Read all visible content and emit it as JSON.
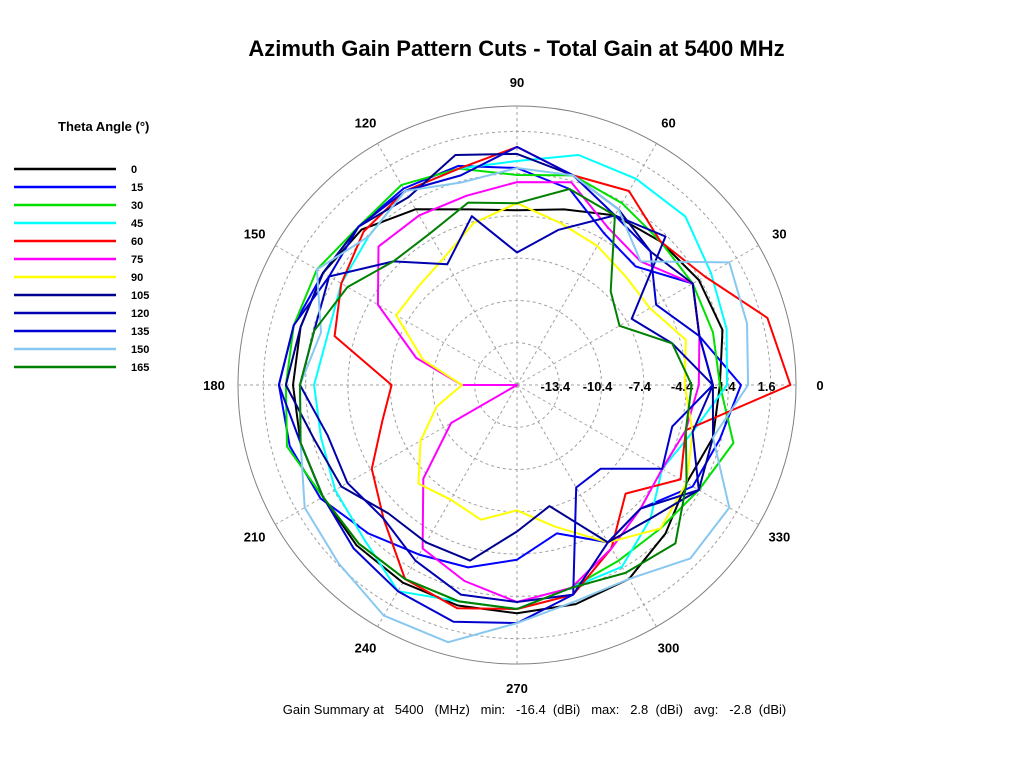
{
  "chart_data": {
    "type": "polar-line",
    "title": "Azimuth Gain Pattern Cuts - Total Gain at 5400 MHz",
    "legend_title": "Theta Angle (°)",
    "angle_labels": [
      "0",
      "30",
      "60",
      "90",
      "120",
      "150",
      "180",
      "210",
      "240",
      "270",
      "300",
      "330"
    ],
    "radial_ticks": [
      "-13.4",
      "-10.4",
      "-7.4",
      "-4.4",
      "-1.4",
      "1.6"
    ],
    "radial_range": [
      -16.4,
      3.4
    ],
    "radial_unit": "dBi",
    "grid": true,
    "legend_position": "left",
    "phi": [
      0,
      15,
      30,
      45,
      60,
      75,
      90,
      105,
      120,
      135,
      150,
      165,
      180,
      195,
      210,
      225,
      240,
      255,
      270,
      285,
      300,
      315,
      330,
      345
    ],
    "series": [
      {
        "name": "0",
        "color": "#000000",
        "values": [
          -2.0,
          -1.3,
          -1.5,
          -2.0,
          -2.5,
          -3.5,
          -4.0,
          -3.5,
          -2.0,
          -0.8,
          -0.5,
          -0.5,
          -0.5,
          -0.5,
          -0.5,
          -0.3,
          -0.2,
          -0.2,
          -0.2,
          -0.3,
          -0.5,
          -1.5,
          -2.5,
          -2.0
        ]
      },
      {
        "name": "15",
        "color": "#0000ff",
        "values": [
          -0.5,
          -3.0,
          -2.0,
          -4.5,
          -4.0,
          -2.0,
          -1.0,
          -0.3,
          -0.3,
          -0.5,
          -0.5,
          0.0,
          0.5,
          0.3,
          -0.3,
          -1.5,
          -2.5,
          -3.0,
          -4.0,
          -5.5,
          -3.5,
          -4.0,
          -2.0,
          -1.5
        ]
      },
      {
        "name": "30",
        "color": "#00e000",
        "values": [
          -2.0,
          -2.0,
          -2.0,
          -2.0,
          -1.5,
          -1.0,
          -1.5,
          -0.5,
          0.0,
          -0.5,
          0.0,
          0.0,
          0.0,
          0.5,
          -0.5,
          -0.5,
          -0.5,
          -0.5,
          -0.5,
          -1.5,
          -2.0,
          -2.0,
          -1.5,
          -0.5
        ]
      },
      {
        "name": "45",
        "color": "#00ffff",
        "values": [
          -1.5,
          -1.0,
          -0.5,
          0.5,
          0.5,
          0.5,
          -0.5,
          -0.5,
          -0.5,
          -1.5,
          -2.0,
          -2.5,
          -2.0,
          -2.0,
          -1.5,
          -1.0,
          0.5,
          -0.5,
          -0.5,
          -1.5,
          -1.5,
          -3.0,
          -4.5,
          -3.5
        ]
      },
      {
        "name": "60",
        "color": "#ff0000",
        "values": [
          3.0,
          2.0,
          -1.0,
          -2.0,
          -0.5,
          -1.0,
          0.5,
          -0.5,
          -0.5,
          -1.0,
          -2.0,
          -3.0,
          -7.5,
          -6.5,
          -4.5,
          -3.0,
          -0.5,
          0.0,
          -0.5,
          -1.0,
          -3.0,
          -5.5,
          -3.0,
          -4.0
        ]
      },
      {
        "name": "75",
        "color": "#ff00ff",
        "values": [
          -3.5,
          -3.0,
          -2.0,
          -4.0,
          -3.5,
          -1.5,
          -2.0,
          -2.5,
          -2.5,
          -2.5,
          -5.0,
          -9.0,
          -12.5,
          -16.4,
          -11.0,
          -7.0,
          -3.0,
          -2.0,
          -1.0,
          -1.5,
          -3.0,
          -4.0,
          -4.5,
          -4.0
        ]
      },
      {
        "name": "90",
        "color": "#ffff00",
        "values": [
          -4.5,
          -4.0,
          -5.5,
          -5.5,
          -5.0,
          -4.5,
          -3.5,
          -4.5,
          -6.0,
          -6.5,
          -6.5,
          -9.5,
          -12.5,
          -10.5,
          -8.5,
          -6.5,
          -7.0,
          -6.5,
          -7.5,
          -6.0,
          -3.5,
          -2.0,
          -2.5,
          -3.5
        ]
      },
      {
        "name": "105",
        "color": "#000090",
        "values": [
          -2.5,
          -3.0,
          -2.0,
          -3.0,
          -2.0,
          -1.0,
          0.0,
          0.5,
          -1.0,
          -0.5,
          -0.5,
          -0.5,
          0.0,
          -1.5,
          -2.0,
          -3.5,
          -3.5,
          -3.5,
          -6.0,
          -7.5,
          -3.5,
          -3.0,
          -1.5,
          -2.0
        ]
      },
      {
        "name": "120",
        "color": "#0000b0",
        "values": [
          -2.5,
          -5.0,
          -7.0,
          -1.5,
          -2.5,
          -5.0,
          -7.0,
          -4.0,
          -6.5,
          -4.0,
          -1.0,
          -1.5,
          -1.0,
          -2.5,
          -2.5,
          -3.0,
          -2.0,
          -1.0,
          -1.0,
          -1.0,
          -3.5,
          -4.0,
          -1.5,
          -3.5
        ]
      },
      {
        "name": "135",
        "color": "#0000d0",
        "values": [
          -2.5,
          -3.0,
          -5.0,
          -3.0,
          -2.5,
          -1.0,
          0.5,
          -1.0,
          -0.5,
          -0.5,
          -1.0,
          0.0,
          0.5,
          -0.5,
          -0.5,
          0.0,
          0.5,
          1.0,
          0.5,
          -1.0,
          -8.0,
          -8.0,
          -4.5,
          -5.0
        ]
      },
      {
        "name": "150",
        "color": "#88c8f0",
        "values": [
          0.0,
          0.5,
          1.0,
          -4.0,
          -2.0,
          -1.0,
          -1.0,
          -1.5,
          -0.5,
          -1.5,
          0.0,
          -2.0,
          -1.0,
          -0.5,
          1.0,
          1.5,
          2.5,
          2.5,
          0.5,
          -0.5,
          -0.5,
          1.0,
          1.0,
          -2.0
        ]
      },
      {
        "name": "165",
        "color": "#008000",
        "values": [
          -4.0,
          -5.0,
          -8.0,
          -7.0,
          -2.5,
          -2.0,
          -3.5,
          -3.0,
          -4.0,
          -4.0,
          -2.5,
          -1.5,
          -1.0,
          -0.5,
          -0.5,
          -0.5,
          -0.5,
          -0.5,
          -0.5,
          -1.5,
          -1.0,
          -0.5,
          -2.5,
          -4.0
        ]
      }
    ]
  },
  "summary": {
    "text": "Gain Summary at   5400   (MHz)   min:   -16.4  (dBi)   max:   2.8  (dBi)   avg:   -2.8  (dBi)"
  }
}
